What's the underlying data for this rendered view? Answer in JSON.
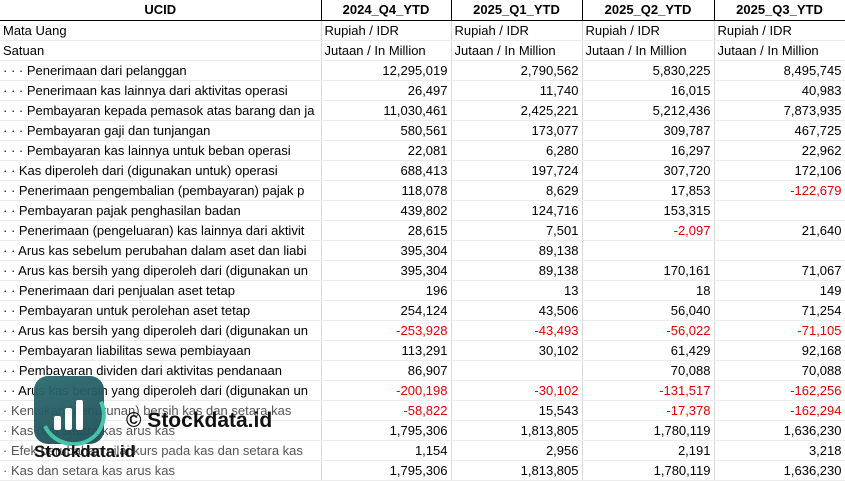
{
  "header": [
    "UCID",
    "2024_Q4_YTD",
    "2025_Q1_YTD",
    "2025_Q2_YTD",
    "2025_Q3_YTD"
  ],
  "currency_row": [
    "Mata Uang",
    "Rupiah / IDR",
    "Rupiah / IDR",
    "Rupiah / IDR",
    "Rupiah / IDR"
  ],
  "unit_row": [
    "Satuan",
    "Jutaan / In Million",
    "Jutaan / In Million",
    "Jutaan / In Million",
    "Jutaan / In Million"
  ],
  "rows": [
    {
      "label": "· · · Penerimaan dari pelanggan",
      "values": [
        "12,295,019",
        "2,790,562",
        "5,830,225",
        "8,495,745"
      ]
    },
    {
      "label": "· · · Penerimaan kas lainnya dari aktivitas operasi",
      "values": [
        "26,497",
        "11,740",
        "16,015",
        "40,983"
      ]
    },
    {
      "label": "· · · Pembayaran kepada pemasok atas barang dan ja",
      "values": [
        "11,030,461",
        "2,425,221",
        "5,212,436",
        "7,873,935"
      ]
    },
    {
      "label": "· · · Pembayaran gaji dan tunjangan",
      "values": [
        "580,561",
        "173,077",
        "309,787",
        "467,725"
      ]
    },
    {
      "label": "· · · Pembayaran kas lainnya untuk beban operasi",
      "values": [
        "22,081",
        "6,280",
        "16,297",
        "22,962"
      ]
    },
    {
      "label": "· · Kas diperoleh dari (digunakan untuk) operasi",
      "values": [
        "688,413",
        "197,724",
        "307,720",
        "172,106"
      ]
    },
    {
      "label": "· · Penerimaan pengembalian (pembayaran) pajak p",
      "values": [
        "118,078",
        "8,629",
        "17,853",
        "-122,679"
      ]
    },
    {
      "label": "· · Pembayaran pajak penghasilan badan",
      "values": [
        "439,802",
        "124,716",
        "153,315",
        ""
      ]
    },
    {
      "label": "· · Penerimaan (pengeluaran) kas lainnya dari aktivit",
      "values": [
        "28,615",
        "7,501",
        "-2,097",
        "21,640"
      ]
    },
    {
      "label": "· · Arus kas sebelum perubahan dalam aset dan liabi",
      "values": [
        "395,304",
        "89,138",
        "",
        ""
      ]
    },
    {
      "label": "· · Arus kas bersih yang diperoleh dari (digunakan un",
      "values": [
        "395,304",
        "89,138",
        "170,161",
        "71,067"
      ]
    },
    {
      "label": "· · Penerimaan dari penjualan aset tetap",
      "values": [
        "196",
        "13",
        "18",
        "149"
      ]
    },
    {
      "label": "· · Pembayaran untuk perolehan aset tetap",
      "values": [
        "254,124",
        "43,506",
        "56,040",
        "71,254"
      ]
    },
    {
      "label": "· · Arus kas bersih yang diperoleh dari (digunakan un",
      "values": [
        "-253,928",
        "-43,493",
        "-56,022",
        "-71,105"
      ]
    },
    {
      "label": "· · Pembayaran liabilitas sewa pembiayaan",
      "values": [
        "113,291",
        "30,102",
        "61,429",
        "92,168"
      ]
    },
    {
      "label": "· · Pembayaran dividen dari aktivitas pendanaan",
      "values": [
        "86,907",
        "",
        "70,088",
        "70,088"
      ]
    },
    {
      "label": "· · Arus kas bersih yang diperoleh dari (digunakan un",
      "values": [
        "-200,198",
        "-30,102",
        "-131,517",
        "-162,256"
      ]
    },
    {
      "label": "· Kenaikan (penurunan) bersih kas dan setara kas",
      "values": [
        "-58,822",
        "15,543",
        "-17,378",
        "-162,294"
      ]
    },
    {
      "label": "· Kas dan setara kas arus kas",
      "values": [
        "1,795,306",
        "1,813,805",
        "1,780,119",
        "1,636,230"
      ]
    },
    {
      "label": "· Efek perubahan nilai kurs pada kas dan setara kas",
      "values": [
        "1,154",
        "2,956",
        "2,191",
        "3,218"
      ]
    },
    {
      "label": "· Kas dan setara kas arus kas",
      "values": [
        "1,795,306",
        "1,813,805",
        "1,780,119",
        "1,636,230"
      ]
    }
  ],
  "watermark": {
    "copyright": "© Stockdata.id",
    "brand": "Stockdata.id",
    "icon": "bar-chart-logo-icon"
  }
}
